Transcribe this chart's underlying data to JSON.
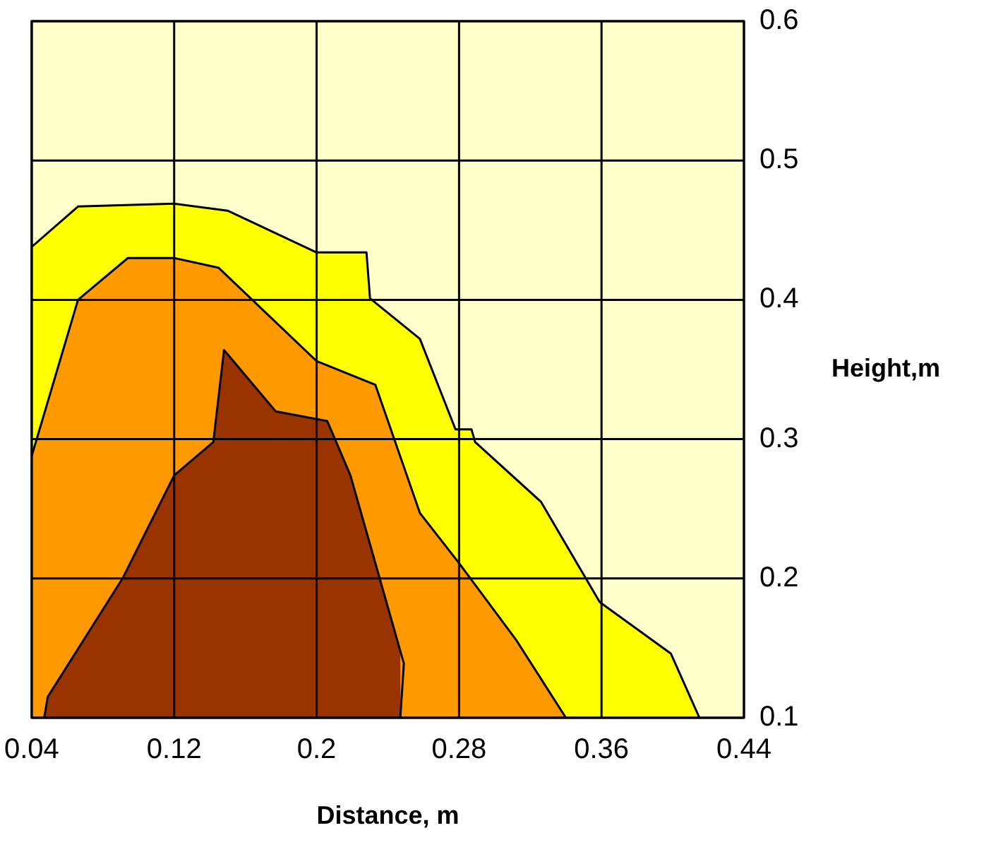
{
  "chart_data": {
    "type": "area",
    "xlabel": "Distance, m",
    "ylabel": "Height,m",
    "xlim": [
      0.04,
      0.44
    ],
    "xticks": [
      0.04,
      0.12,
      0.2,
      0.28,
      0.36,
      0.44
    ],
    "ylim": [
      0.1,
      0.6
    ],
    "yticks": [
      0.1,
      0.2,
      0.3,
      0.4,
      0.5,
      0.6
    ],
    "grid": true,
    "legend": false,
    "bands": [
      {
        "axis": "y",
        "from": 0.1,
        "to": 0.6,
        "color": "#ffffcc"
      }
    ],
    "series": [
      {
        "color": "#ffff00",
        "x": [
          0.04,
          0.066,
          0.12,
          0.15,
          0.2,
          0.228,
          0.23,
          0.258,
          0.278,
          0.287,
          0.289,
          0.326,
          0.359,
          0.399,
          0.415
        ],
        "values": [
          0.438,
          0.467,
          0.469,
          0.464,
          0.434,
          0.434,
          0.401,
          0.372,
          0.307,
          0.307,
          0.298,
          0.255,
          0.183,
          0.146,
          0.1
        ]
      },
      {
        "color": "#ff9900",
        "x": [
          0.04,
          0.066,
          0.094,
          0.12,
          0.145,
          0.2,
          0.233,
          0.258,
          0.28,
          0.312,
          0.34
        ],
        "values": [
          0.288,
          0.4,
          0.43,
          0.43,
          0.423,
          0.356,
          0.339,
          0.247,
          0.211,
          0.156,
          0.1
        ]
      },
      {
        "color": "#993300",
        "x": [
          0.047,
          0.049,
          0.091,
          0.12,
          0.142,
          0.148,
          0.177,
          0.206,
          0.219,
          0.249,
          0.247
        ],
        "values": [
          0.1,
          0.115,
          0.2,
          0.274,
          0.298,
          0.364,
          0.32,
          0.313,
          0.274,
          0.139,
          0.1
        ]
      }
    ]
  }
}
